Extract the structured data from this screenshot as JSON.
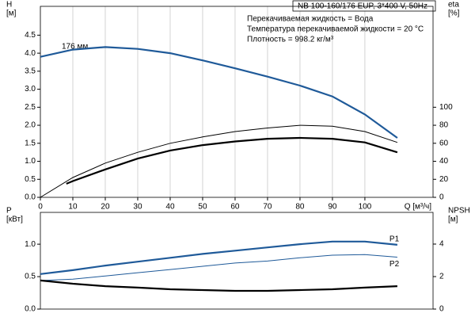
{
  "chart_data": [
    {
      "type": "line",
      "title": "NB 100-160/176 EUP, 3*400 V, 50Hz",
      "info": [
        "Перекачиваемая жидкость = Вода",
        "Температура перекачиваемой жидкости = 20 °C",
        "Плотность = 998.2 кг/м³"
      ],
      "annotation": "176 мм",
      "ylabel": [
        "H",
        "[м]"
      ],
      "y2label": [
        "eta",
        "[%]"
      ],
      "xlabel": "Q [м³/ч]",
      "xlim": [
        0,
        121
      ],
      "xticks": [
        0,
        10,
        20,
        30,
        40,
        50,
        60,
        70,
        80,
        90,
        100
      ],
      "grid": "x",
      "ylim": [
        0,
        5.3
      ],
      "yticks": [
        {
          "value": 0,
          "label": "0.0"
        },
        {
          "value": 0.5,
          "label": "0.5"
        },
        {
          "value": 1,
          "label": "1.0"
        },
        {
          "value": 1.5,
          "label": "1.5"
        },
        {
          "value": 2,
          "label": "2.0"
        },
        {
          "value": 2.5,
          "label": "2.5"
        },
        {
          "value": 3,
          "label": "3.0"
        },
        {
          "value": 3.5,
          "label": "3.5"
        },
        {
          "value": 4,
          "label": "4.0"
        },
        {
          "value": 4.5,
          "label": "4.5"
        }
      ],
      "y2lim": [
        0,
        212
      ],
      "y2ticks": [
        0,
        20,
        40,
        60,
        80,
        100
      ],
      "series": [
        {
          "color": "#1f5a99",
          "width": 2.2,
          "x": [
            0,
            10,
            20,
            30,
            40,
            50,
            60,
            70,
            80,
            90,
            100,
            110
          ],
          "values": [
            3.9,
            4.1,
            4.17,
            4.12,
            4.0,
            3.8,
            3.58,
            3.35,
            3.1,
            2.8,
            2.3,
            1.65
          ]
        },
        {
          "color": "#000000",
          "width": 1,
          "axis": "y2",
          "x": [
            0,
            10,
            20,
            30,
            40,
            50,
            60,
            70,
            80,
            90,
            100,
            110
          ],
          "values": [
            0,
            22,
            38,
            50,
            60,
            67,
            73,
            77,
            80,
            79,
            73,
            61
          ]
        },
        {
          "color": "#000000",
          "width": 2.2,
          "axis": "y2",
          "x": [
            8,
            10,
            20,
            30,
            40,
            50,
            60,
            70,
            80,
            90,
            100,
            110
          ],
          "values": [
            15,
            18,
            31,
            43,
            52,
            58,
            62,
            65,
            66,
            65,
            61,
            50
          ]
        }
      ]
    },
    {
      "type": "line",
      "ylabel": [
        "P",
        "[кВт]"
      ],
      "y2label": [
        "NPSH",
        "[м]"
      ],
      "xlim": [
        0,
        121
      ],
      "ylim": [
        0,
        1.49
      ],
      "yticks": [
        {
          "value": 0,
          "label": "0.0"
        },
        {
          "value": 0.5,
          "label": "0.5"
        },
        {
          "value": 1,
          "label": "1.0"
        }
      ],
      "y2lim": [
        0,
        5.95
      ],
      "y2ticks": [
        0,
        2,
        4
      ],
      "series": [
        {
          "name": "P1",
          "color": "#1f5a99",
          "width": 2.2,
          "x": [
            0,
            10,
            20,
            30,
            40,
            50,
            60,
            70,
            80,
            90,
            100,
            110
          ],
          "values": [
            0.54,
            0.6,
            0.67,
            0.73,
            0.79,
            0.85,
            0.9,
            0.95,
            1.0,
            1.04,
            1.04,
            0.99
          ]
        },
        {
          "name": "P2",
          "color": "#1f5a99",
          "width": 1,
          "x": [
            0,
            10,
            20,
            30,
            40,
            50,
            60,
            70,
            80,
            90,
            100,
            110
          ],
          "values": [
            0.44,
            0.46,
            0.51,
            0.56,
            0.61,
            0.66,
            0.71,
            0.74,
            0.79,
            0.83,
            0.84,
            0.8
          ]
        },
        {
          "color": "#000000",
          "width": 2.2,
          "axis": "y2",
          "x": [
            0,
            10,
            20,
            30,
            40,
            50,
            60,
            70,
            80,
            90,
            100,
            110
          ],
          "values": [
            1.76,
            1.56,
            1.41,
            1.32,
            1.22,
            1.17,
            1.12,
            1.12,
            1.17,
            1.22,
            1.32,
            1.41
          ]
        }
      ]
    }
  ]
}
